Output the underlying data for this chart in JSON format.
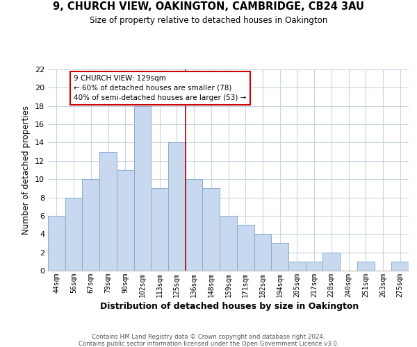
{
  "title": "9, CHURCH VIEW, OAKINGTON, CAMBRIDGE, CB24 3AU",
  "subtitle": "Size of property relative to detached houses in Oakington",
  "xlabel": "Distribution of detached houses by size in Oakington",
  "ylabel": "Number of detached properties",
  "bar_labels": [
    "44sqm",
    "56sqm",
    "67sqm",
    "79sqm",
    "90sqm",
    "102sqm",
    "113sqm",
    "125sqm",
    "136sqm",
    "148sqm",
    "159sqm",
    "171sqm",
    "182sqm",
    "194sqm",
    "205sqm",
    "217sqm",
    "228sqm",
    "240sqm",
    "251sqm",
    "263sqm",
    "275sqm"
  ],
  "bar_values": [
    6,
    8,
    10,
    13,
    11,
    18,
    9,
    14,
    10,
    9,
    6,
    5,
    4,
    3,
    1,
    1,
    2,
    0,
    1,
    0,
    1
  ],
  "bar_color": "#c8d8ee",
  "bar_edge_color": "#8aaad4",
  "vline_index": 7,
  "vline_color": "#aa0000",
  "annotation_text": "9 CHURCH VIEW: 129sqm\n← 60% of detached houses are smaller (78)\n40% of semi-detached houses are larger (53) →",
  "annotation_box_color": "#ffffff",
  "annotation_box_edge": "#cc0000",
  "ylim": [
    0,
    22
  ],
  "yticks": [
    0,
    2,
    4,
    6,
    8,
    10,
    12,
    14,
    16,
    18,
    20,
    22
  ],
  "footer1": "Contains HM Land Registry data © Crown copyright and database right 2024.",
  "footer2": "Contains public sector information licensed under the Open Government Licence v3.0.",
  "bg_color": "#ffffff",
  "grid_color": "#c8d4e4"
}
